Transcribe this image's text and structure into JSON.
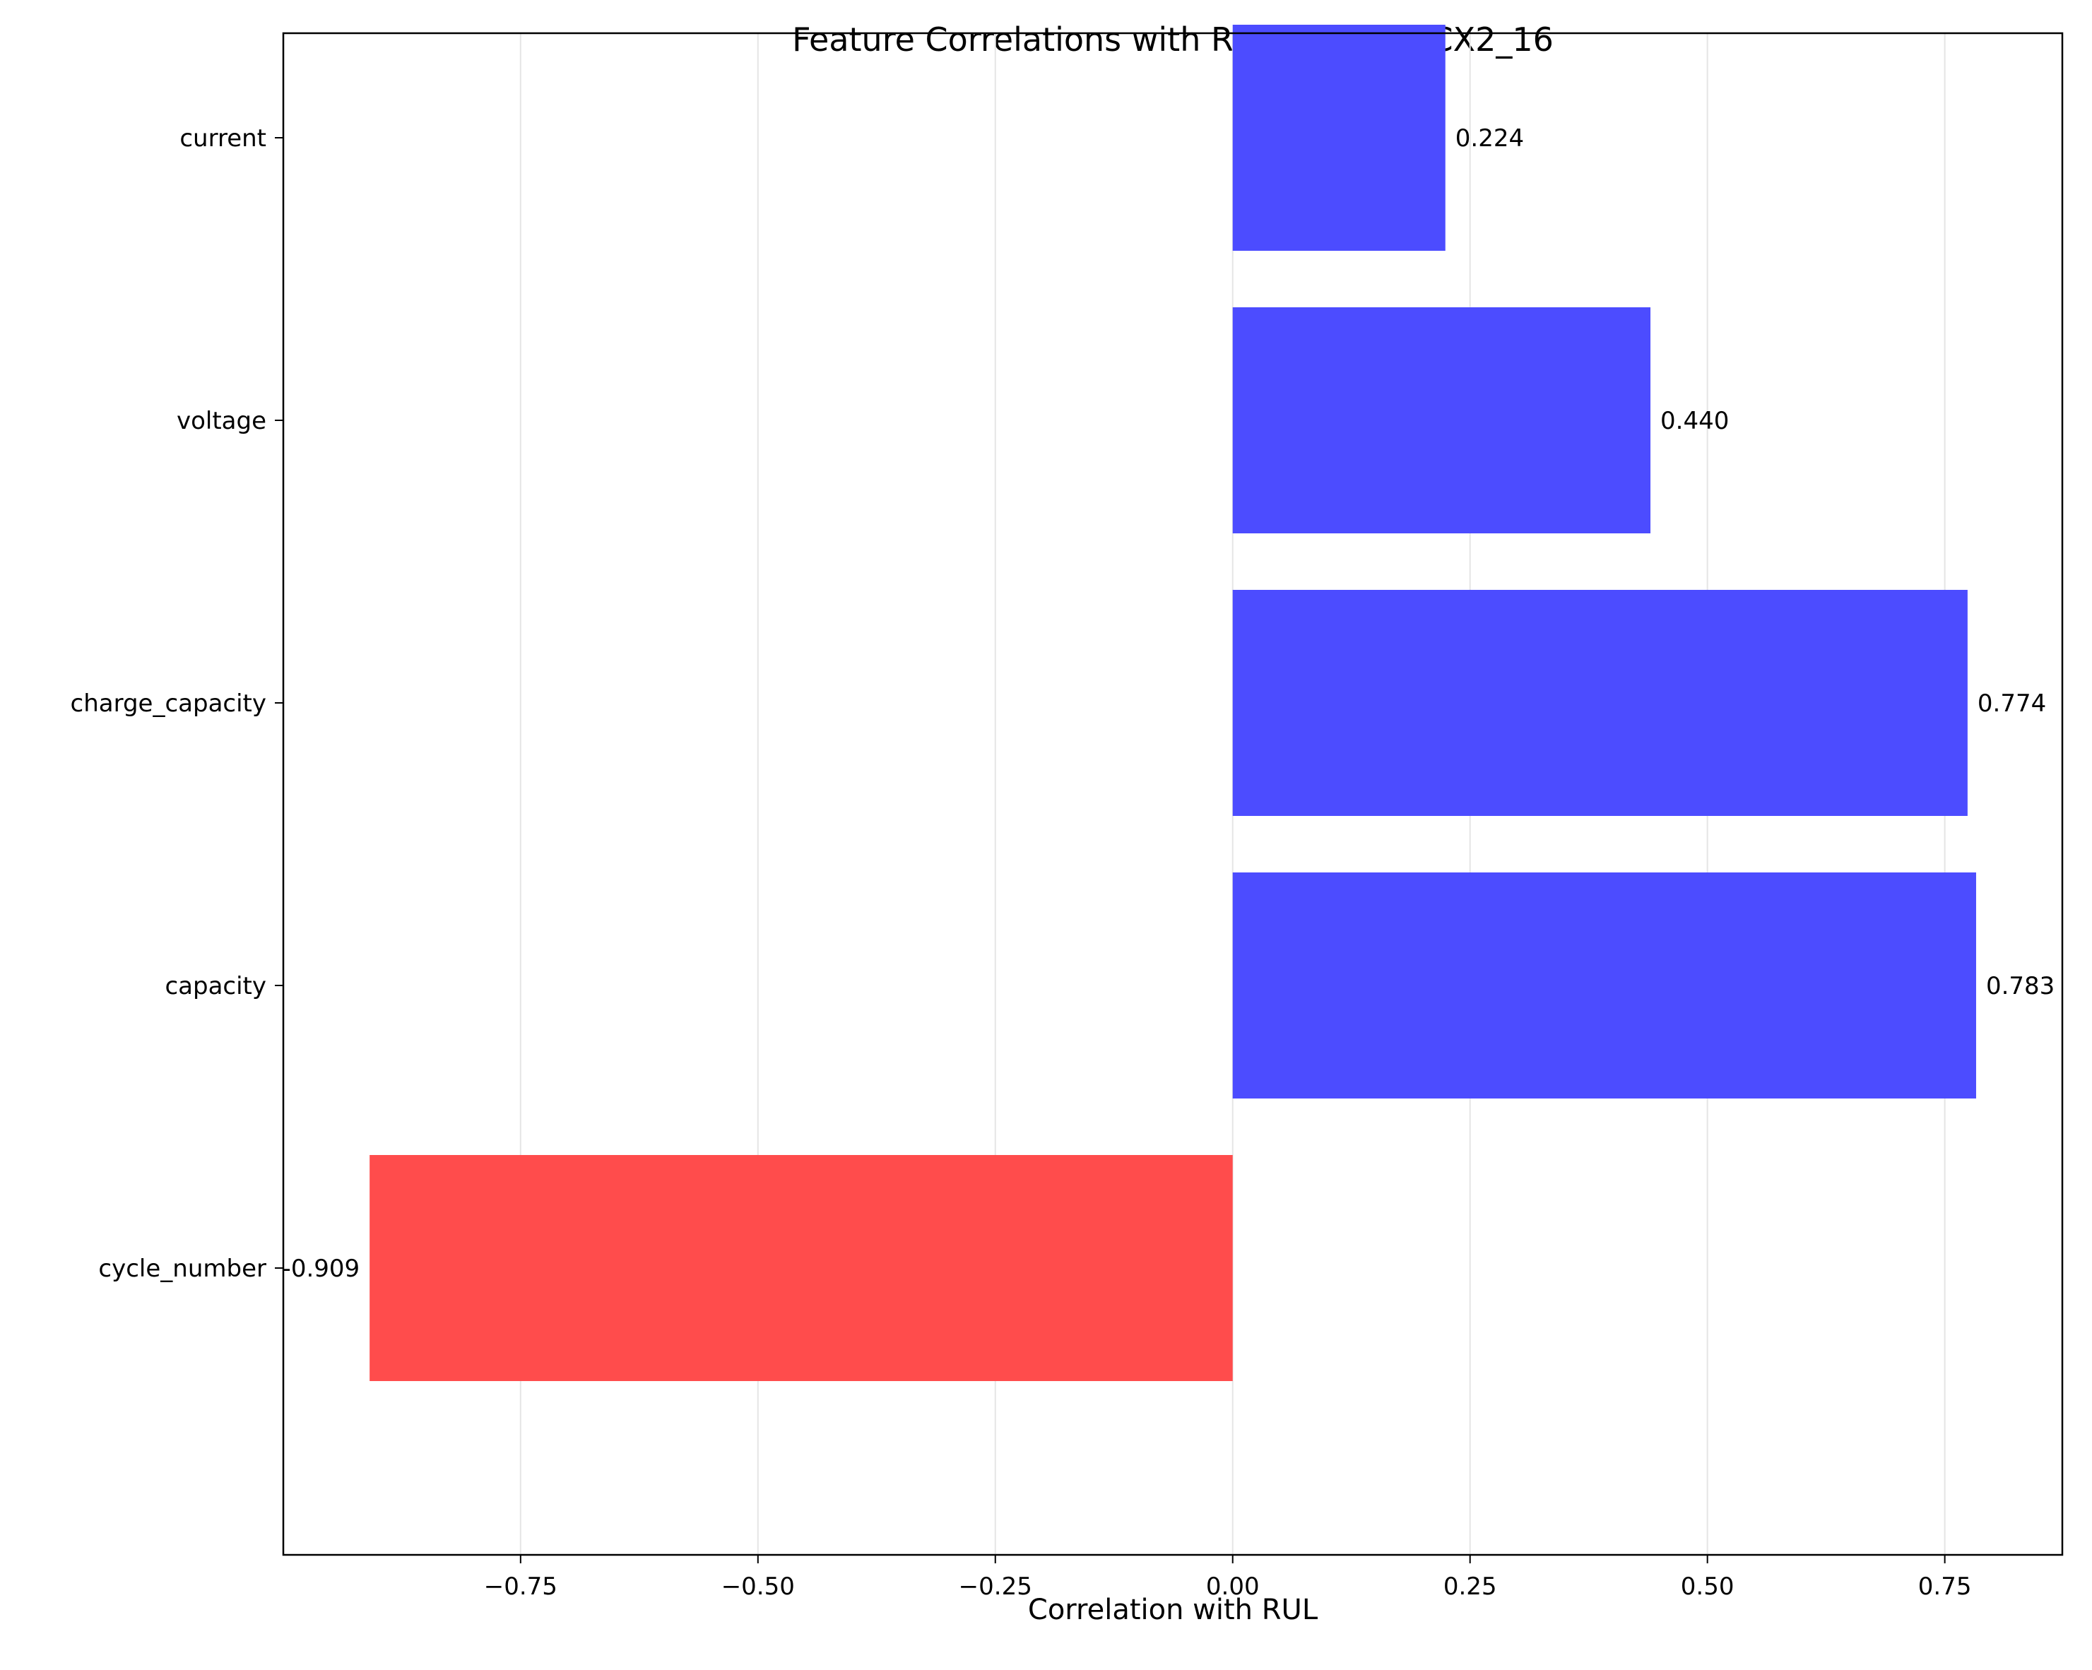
{
  "chart_data": {
    "type": "bar",
    "orientation": "horizontal",
    "title": "Feature Correlations with RUL - CALCE_CX2_16",
    "xlabel": "Correlation with RUL",
    "ylabel": "",
    "categories": [
      "current",
      "voltage",
      "charge_capacity",
      "capacity",
      "cycle_number"
    ],
    "values": [
      0.224,
      0.44,
      0.774,
      0.783,
      -0.909
    ],
    "value_labels": [
      "0.224",
      "0.440",
      "0.774",
      "0.783",
      "-0.909"
    ],
    "xlim": [
      -0.9999,
      0.8738
    ],
    "xticks": [
      -0.75,
      -0.5,
      -0.25,
      0.0,
      0.25,
      0.5,
      0.75
    ],
    "xtick_labels": [
      "−0.75",
      "−0.50",
      "−0.25",
      "0.00",
      "0.25",
      "0.50",
      "0.75"
    ],
    "grid": "x",
    "colors": {
      "positive": "#4c4cff",
      "negative": "#ff4c4c",
      "grid": "#e5e5e5",
      "axis": "#000000"
    }
  }
}
